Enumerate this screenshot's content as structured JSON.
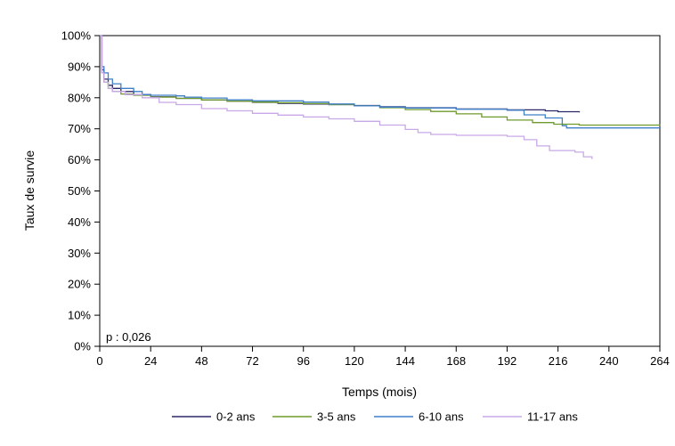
{
  "chart_data": {
    "type": "line",
    "title": "",
    "xlabel": "Temps (mois)",
    "ylabel": "Taux de survie",
    "xlim": [
      0,
      264
    ],
    "ylim": [
      0,
      100
    ],
    "x_ticks": [
      0,
      24,
      48,
      72,
      96,
      120,
      144,
      168,
      192,
      216,
      240,
      264
    ],
    "y_ticks": [
      0,
      10,
      20,
      30,
      40,
      50,
      60,
      70,
      80,
      90,
      100
    ],
    "y_tick_labels": [
      "0%",
      "10%",
      "20%",
      "30%",
      "40%",
      "50%",
      "60%",
      "70%",
      "80%",
      "90%",
      "100%"
    ],
    "grid": false,
    "legend_position": "bottom",
    "annotation": "p : 0,026",
    "series": [
      {
        "name": "0-2 ans",
        "color": "#2b2868",
        "points": [
          [
            0,
            100
          ],
          [
            1,
            89
          ],
          [
            2,
            86
          ],
          [
            4,
            84
          ],
          [
            6,
            83
          ],
          [
            10,
            82
          ],
          [
            16,
            81
          ],
          [
            24,
            80.3
          ],
          [
            36,
            79.8
          ],
          [
            48,
            79.3
          ],
          [
            60,
            78.9
          ],
          [
            72,
            78.5
          ],
          [
            84,
            78.2
          ],
          [
            96,
            78
          ],
          [
            108,
            77.8
          ],
          [
            120,
            77.5
          ],
          [
            132,
            77.1
          ],
          [
            144,
            76.8
          ],
          [
            168,
            76.4
          ],
          [
            192,
            76.1
          ],
          [
            210,
            75.8
          ],
          [
            216,
            75.5
          ],
          [
            226,
            75.3
          ]
        ]
      },
      {
        "name": "3-5 ans",
        "color": "#6f9a2c",
        "points": [
          [
            0,
            100
          ],
          [
            1,
            88
          ],
          [
            2,
            85
          ],
          [
            4,
            83
          ],
          [
            6,
            82
          ],
          [
            10,
            81.2
          ],
          [
            16,
            80.8
          ],
          [
            24,
            80.2
          ],
          [
            36,
            79.8
          ],
          [
            48,
            79.3
          ],
          [
            60,
            78.9
          ],
          [
            72,
            78.6
          ],
          [
            84,
            78.4
          ],
          [
            96,
            78.1
          ],
          [
            108,
            77.8
          ],
          [
            120,
            77.4
          ],
          [
            132,
            76.8
          ],
          [
            144,
            76.2
          ],
          [
            156,
            75.6
          ],
          [
            168,
            74.8
          ],
          [
            180,
            73.8
          ],
          [
            192,
            72.8
          ],
          [
            204,
            72
          ],
          [
            214,
            71.5
          ],
          [
            226,
            71.2
          ],
          [
            264,
            71
          ]
        ]
      },
      {
        "name": "6-10 ans",
        "color": "#3f7fc8",
        "points": [
          [
            0,
            100
          ],
          [
            1,
            90
          ],
          [
            2,
            88
          ],
          [
            4,
            86
          ],
          [
            6,
            84.5
          ],
          [
            10,
            83
          ],
          [
            16,
            82
          ],
          [
            20,
            81
          ],
          [
            24,
            80.8
          ],
          [
            36,
            80.6
          ],
          [
            40,
            80.2
          ],
          [
            48,
            79.9
          ],
          [
            60,
            79.3
          ],
          [
            72,
            79
          ],
          [
            96,
            78.6
          ],
          [
            108,
            78
          ],
          [
            120,
            77.4
          ],
          [
            132,
            77
          ],
          [
            144,
            76.7
          ],
          [
            168,
            76.3
          ],
          [
            192,
            76
          ],
          [
            200,
            74.5
          ],
          [
            210,
            73.5
          ],
          [
            218,
            71
          ],
          [
            220,
            70.3
          ],
          [
            264,
            70.3
          ]
        ]
      },
      {
        "name": "11-17 ans",
        "color": "#c9a8e8",
        "points": [
          [
            0,
            100
          ],
          [
            1,
            88
          ],
          [
            2,
            85
          ],
          [
            4,
            83
          ],
          [
            6,
            82
          ],
          [
            12,
            81
          ],
          [
            20,
            80
          ],
          [
            28,
            78.5
          ],
          [
            36,
            77.8
          ],
          [
            48,
            76.5
          ],
          [
            60,
            75.8
          ],
          [
            72,
            75
          ],
          [
            84,
            74.4
          ],
          [
            96,
            73.8
          ],
          [
            108,
            73.2
          ],
          [
            120,
            72.4
          ],
          [
            132,
            71.2
          ],
          [
            144,
            69.8
          ],
          [
            150,
            68.8
          ],
          [
            156,
            68.2
          ],
          [
            168,
            67.9
          ],
          [
            192,
            67.6
          ],
          [
            200,
            66.5
          ],
          [
            206,
            64.5
          ],
          [
            212,
            63
          ],
          [
            224,
            62.5
          ],
          [
            228,
            61
          ],
          [
            232,
            60.3
          ]
        ]
      }
    ]
  }
}
